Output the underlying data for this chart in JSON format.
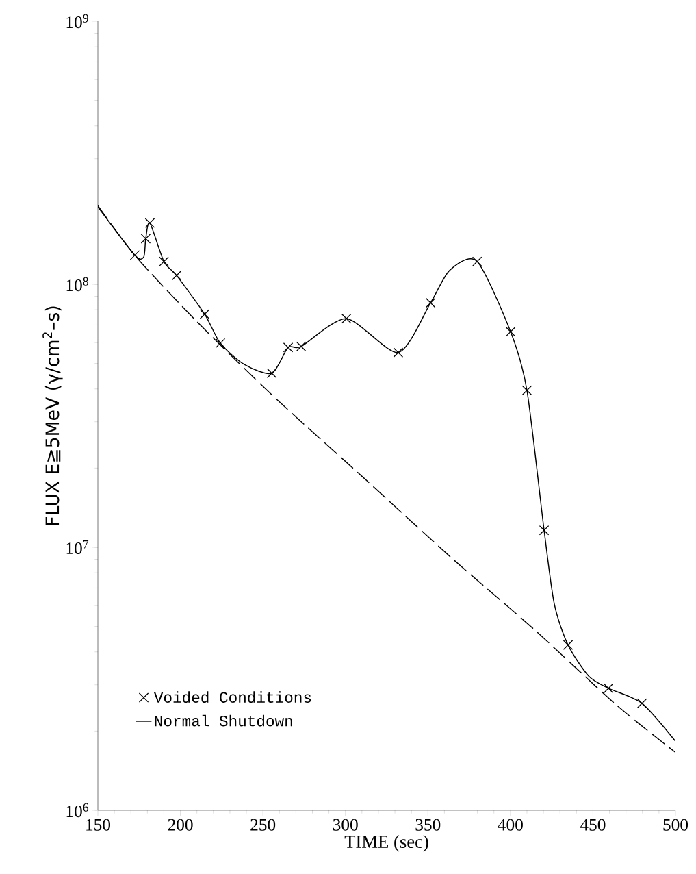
{
  "chart_data": {
    "type": "line",
    "xlabel": "TIME (sec)",
    "ylabel": "FLUX  E≧5MeV  (γ/cm$^{2}$–s)",
    "log": "y",
    "grid": false,
    "legend": "bottom left",
    "xlim": [
      150,
      500
    ],
    "xticks": [
      150,
      200,
      250,
      300,
      350,
      400,
      450,
      500
    ],
    "ylim": [
      1000000,
      1000000000
    ],
    "yticks": [
      {
        "value": 1000000,
        "label": "10$^{6}$"
      },
      {
        "value": 10000000,
        "label": "10$^{7}$"
      },
      {
        "value": 100000000,
        "label": "10$^{8}$"
      },
      {
        "value": 1000000000,
        "label": "10$^{9}$"
      }
    ],
    "series": [
      {
        "color": "#000000",
        "line_style": "solid",
        "marker": "none",
        "x": [
          150,
          172.4,
          177.8,
          179,
          181.5,
          190,
          197.7,
          214.7,
          224.2,
          238.8,
          255.4,
          265.3,
          273.2,
          300.6,
          332,
          351.6,
          363.2,
          379.8,
          400.1,
          410,
          420.4,
          426.6,
          434.9,
          447.4,
          459.4,
          479.7,
          500
        ],
        "values": [
          197000000,
          129000000,
          127000000,
          149000000,
          171000000,
          122000000,
          108000000,
          77000000,
          59700000,
          49500000,
          45900000,
          57500000,
          58000000,
          74000000,
          55000000,
          85000000,
          113000000,
          122000000,
          66000000,
          39500000,
          11600000,
          6080000,
          4250000,
          3240000,
          2910000,
          2550000,
          1830000
        ]
      },
      {
        "type": "scatter",
        "name": "Voided Conditions",
        "color": "#000000",
        "marker": "cross",
        "x": [
          172.4,
          179,
          181.5,
          190,
          197.7,
          214.7,
          224.2,
          255.4,
          265.3,
          273.2,
          300.6,
          332,
          351.6,
          379.8,
          400.1,
          410,
          420.4,
          434.9,
          459.4,
          479.7
        ],
        "values": [
          129000000,
          149000000,
          171000000,
          122000000,
          108000000,
          77000000,
          59700000,
          45900000,
          57500000,
          58000000,
          74000000,
          55000000,
          85000000,
          122000000,
          66000000,
          39500000,
          11600000,
          4250000,
          2910000,
          2550000
        ]
      },
      {
        "type": "line",
        "name": "Normal Shutdown",
        "color": "#000000",
        "line_style": "dashed",
        "marker": "none",
        "x": [
          150,
          172.8,
          210.1,
          256.6,
          310.5,
          364.4,
          414.2,
          464,
          500
        ],
        "values": [
          199000000,
          128000000,
          72000000,
          37400000,
          18500000,
          9100000,
          4880000,
          2520000,
          1660000
        ]
      }
    ]
  }
}
